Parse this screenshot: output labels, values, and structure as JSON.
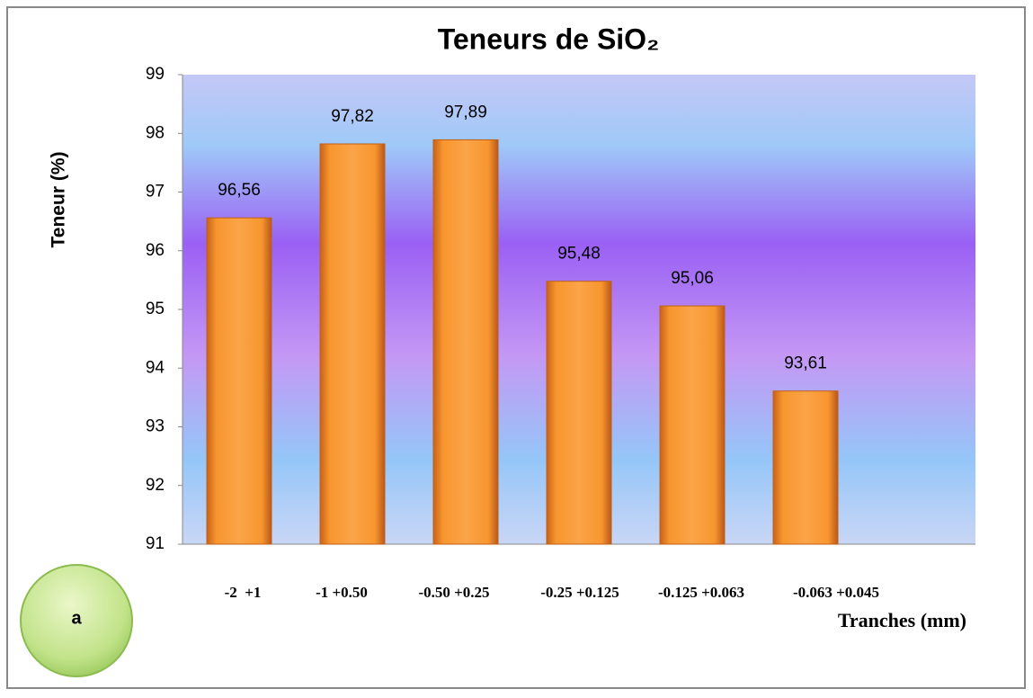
{
  "chart_data": {
    "type": "bar",
    "title": "Teneurs de SiO₂",
    "y_label": "Teneur (%)",
    "x_label": "Tranches  (mm)",
    "categories": [
      "-2  +1",
      "-1 +0.50",
      "-0.50 +0.25",
      "-0.25 +0.125",
      "-0.125 +0.063",
      "-0.063 +0.045",
      null
    ],
    "values": [
      96.56,
      97.82,
      97.89,
      95.48,
      95.06,
      93.61,
      null
    ],
    "value_labels": [
      "96,56",
      "97,82",
      "97,89",
      "95,48",
      "95,06",
      "93,61",
      null
    ],
    "color": "#f7962e",
    "ylim": [
      91,
      99
    ],
    "yticks": [
      91,
      92,
      93,
      94,
      95,
      96,
      97,
      98,
      99
    ],
    "grid": false,
    "annotation": "a"
  }
}
